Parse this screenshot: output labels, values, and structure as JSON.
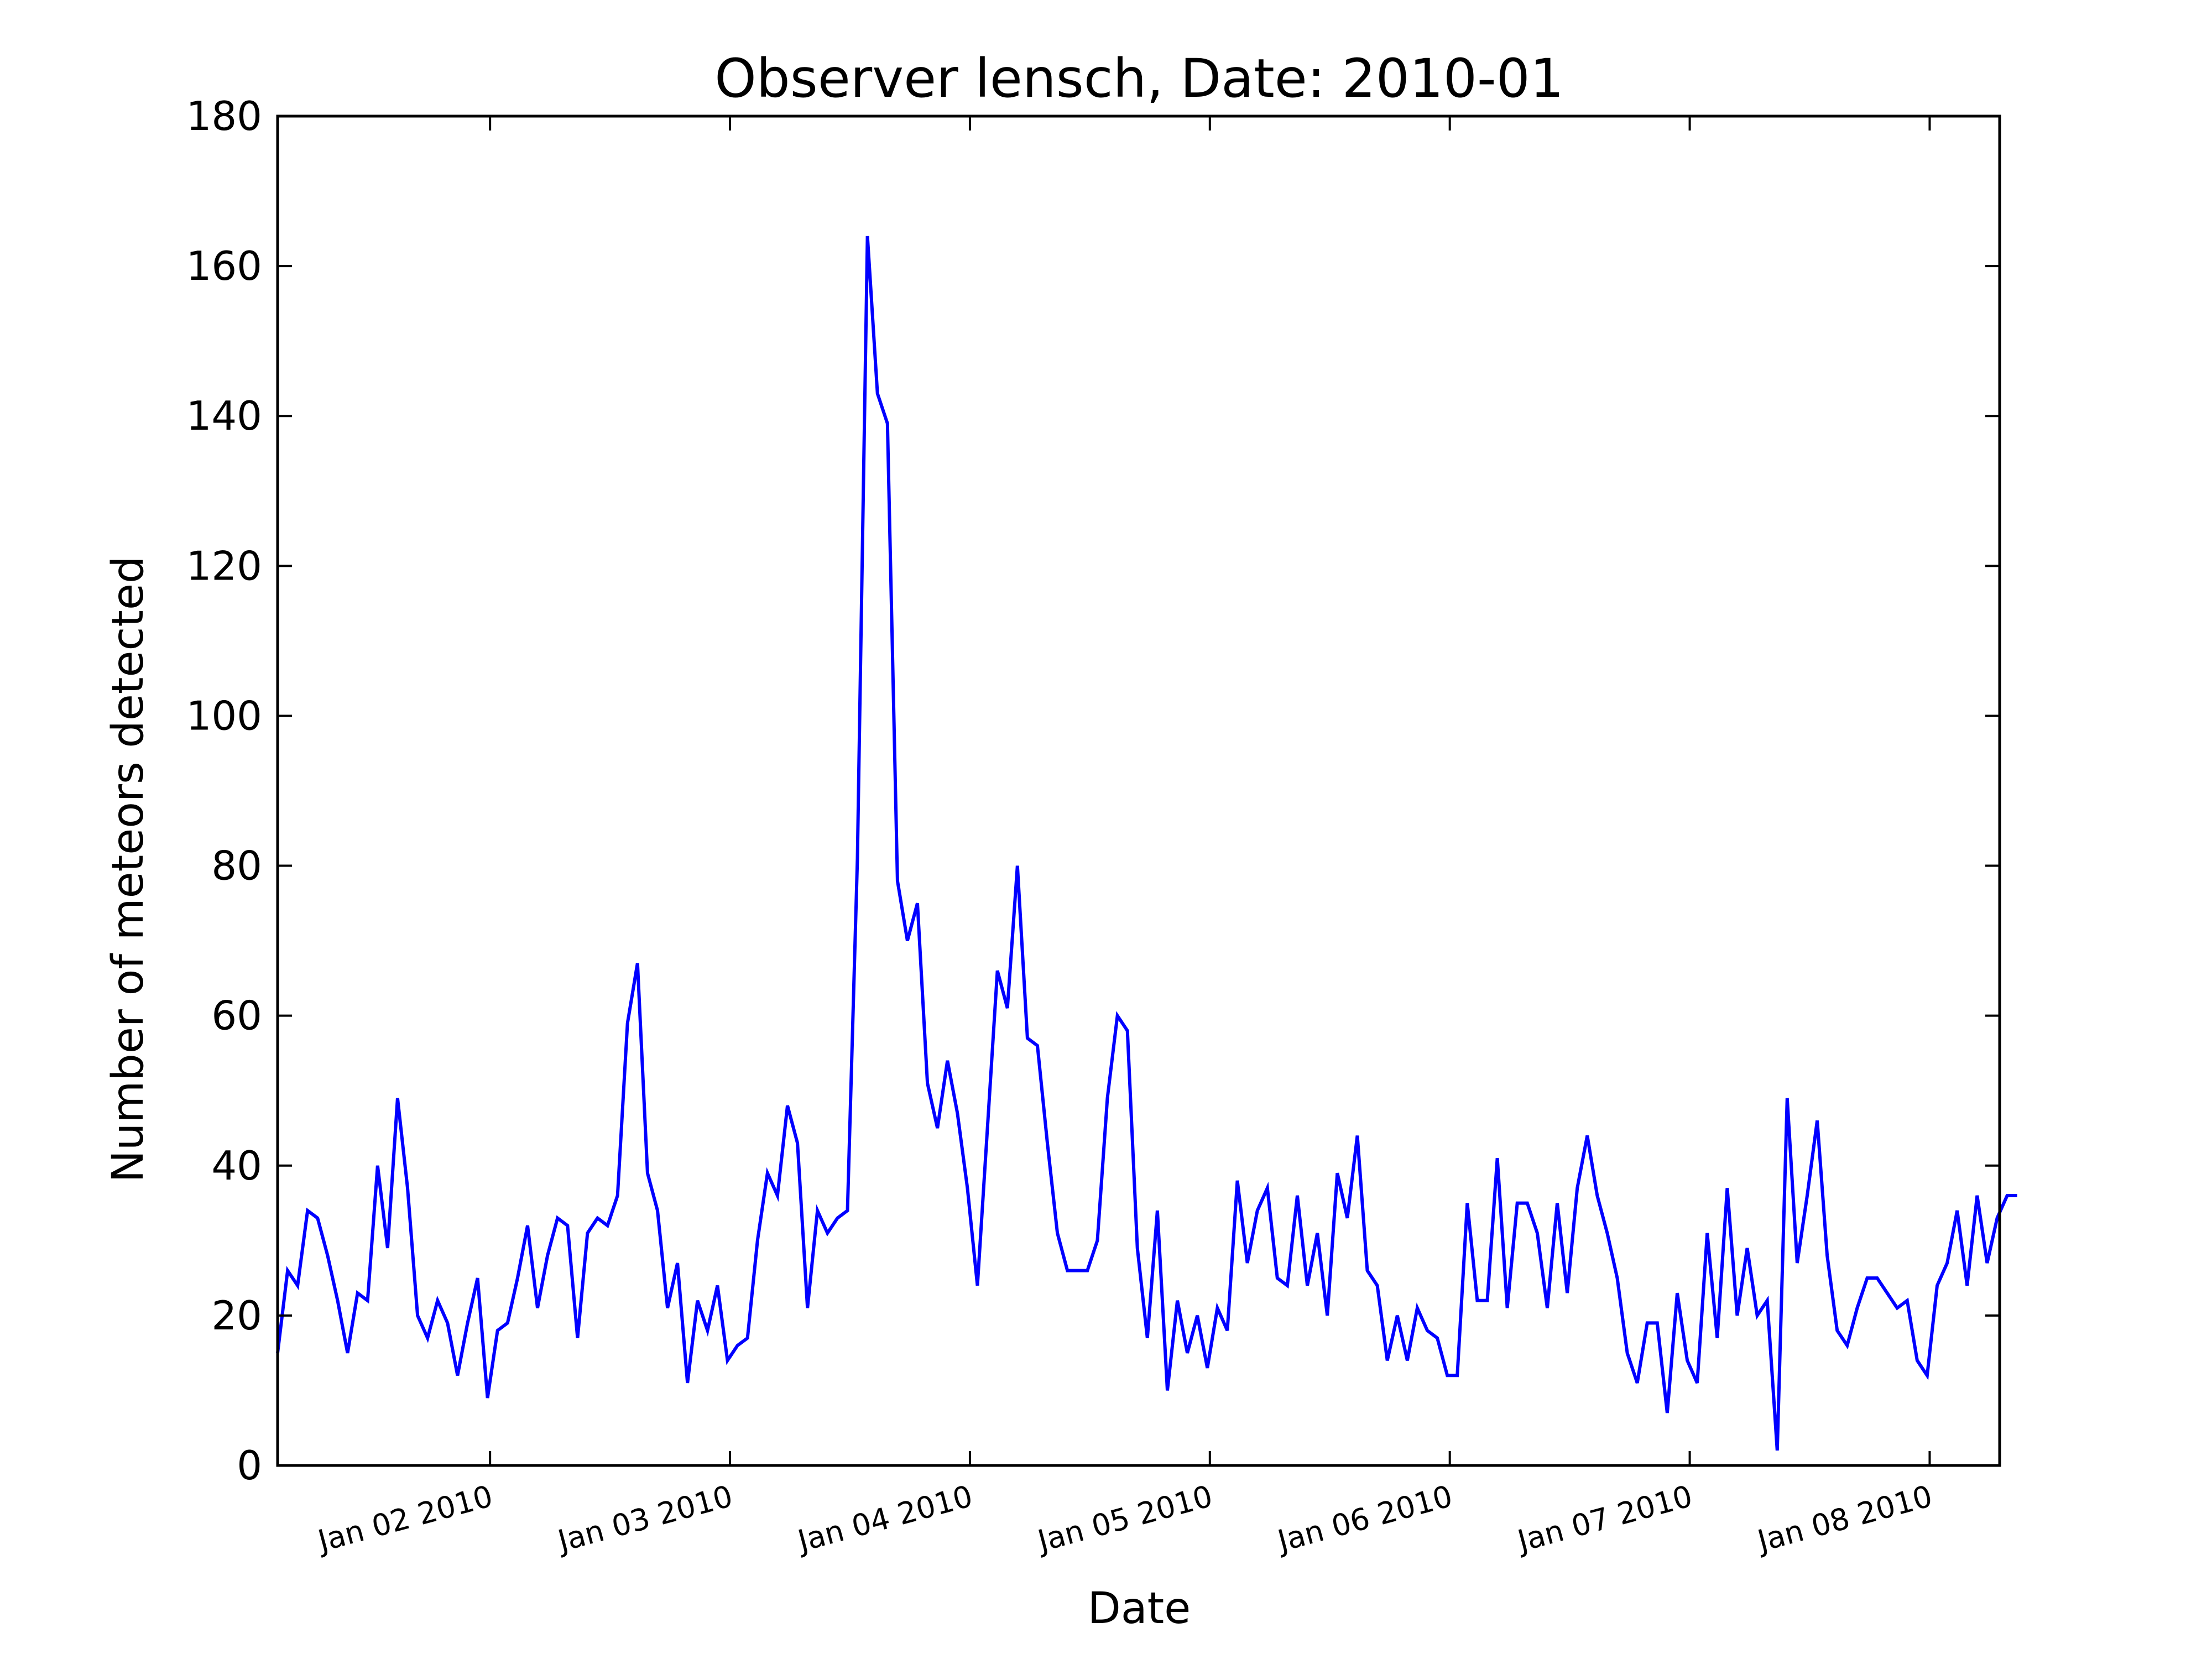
{
  "chart_data": {
    "type": "line",
    "title": "Observer lensch, Date: 2010-01",
    "xlabel": "Date",
    "ylabel": "Number of meteors detected",
    "ylim": [
      0,
      180
    ],
    "xlim": [
      "2010-01-01 02:45",
      "2010-01-08 07:00"
    ],
    "yticks": [
      0,
      20,
      40,
      60,
      80,
      100,
      120,
      140,
      160,
      180
    ],
    "xticks": [
      {
        "date": "2010-01-02",
        "label": "Jan 02 2010"
      },
      {
        "date": "2010-01-03",
        "label": "Jan 03 2010"
      },
      {
        "date": "2010-01-04",
        "label": "Jan 04 2010"
      },
      {
        "date": "2010-01-05",
        "label": "Jan 05 2010"
      },
      {
        "date": "2010-01-06",
        "label": "Jan 06 2010"
      },
      {
        "date": "2010-01-07",
        "label": "Jan 07 2010"
      },
      {
        "date": "2010-01-08",
        "label": "Jan 08 2010"
      }
    ],
    "grid": false,
    "line_color": "#0000ff",
    "x_start": "2010-01-01 02:45",
    "x_step_minutes": 60,
    "values": [
      15,
      26,
      24,
      34,
      33,
      28,
      22,
      15,
      23,
      22,
      40,
      29,
      49,
      37,
      20,
      17,
      22,
      19,
      12,
      19,
      25,
      9,
      18,
      19,
      25,
      32,
      21,
      28,
      33,
      32,
      17,
      31,
      33,
      32,
      36,
      59,
      67,
      39,
      34,
      21,
      27,
      11,
      22,
      18,
      24,
      14,
      16,
      17,
      30,
      39,
      36,
      48,
      43,
      21,
      34,
      31,
      33,
      34,
      81,
      164,
      143,
      139,
      78,
      70,
      75,
      51,
      45,
      54,
      47,
      37,
      24,
      45,
      66,
      61,
      80,
      57,
      56,
      43,
      31,
      26,
      26,
      26,
      30,
      49,
      60,
      58,
      29,
      17,
      34,
      10,
      22,
      15,
      20,
      13,
      21,
      18,
      38,
      27,
      34,
      37,
      25,
      24,
      36,
      24,
      31,
      20,
      39,
      33,
      44,
      26,
      24,
      14,
      20,
      14,
      21,
      18,
      17,
      12,
      12,
      35,
      22,
      22,
      41,
      21,
      35,
      35,
      31,
      21,
      35,
      23,
      37,
      44,
      36,
      31,
      25,
      15,
      11,
      19,
      19,
      7,
      23,
      14,
      11,
      31,
      17,
      37,
      20,
      29,
      20,
      22,
      2,
      49,
      27,
      36,
      46,
      28,
      18,
      16,
      21,
      25,
      25,
      23,
      21,
      22,
      14,
      12,
      24,
      27,
      34,
      24,
      36,
      27,
      33,
      36,
      36
    ]
  }
}
